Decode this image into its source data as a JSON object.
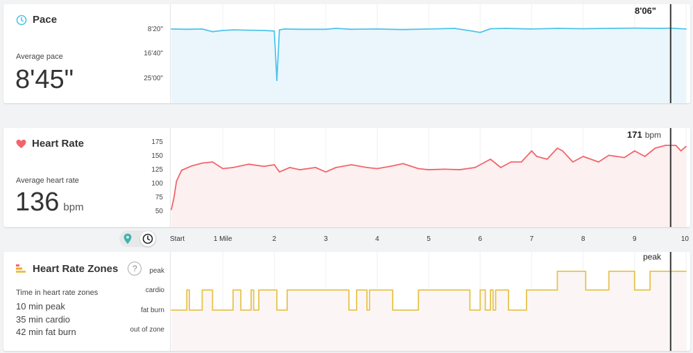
{
  "colors": {
    "pace": "#4ec4ea",
    "pace_fill": "#eaf6fc",
    "hr": "#f2646b",
    "hr_fill": "#fdf0f0",
    "zones": "#e6c34d",
    "zones_fill": "#fbf6f5",
    "marker": "#333333"
  },
  "pace": {
    "title": "Pace",
    "icon": "clock-icon",
    "avg_label": "Average pace",
    "avg_value": "8'45\"",
    "marker_value": "8'06\"",
    "yticks": [
      "8'20\"",
      "16'40\"",
      "25'00\""
    ]
  },
  "heart_rate": {
    "title": "Heart Rate",
    "icon": "heart-icon",
    "avg_label": "Average heart rate",
    "avg_value": "136",
    "avg_unit": "bpm",
    "marker_value": "171",
    "marker_unit": "bpm",
    "yticks": [
      "175",
      "150",
      "125",
      "100",
      "75",
      "50"
    ]
  },
  "axis": {
    "ticks": [
      "Start",
      "1 Mile",
      "2",
      "3",
      "4",
      "5",
      "6",
      "7",
      "8",
      "9",
      "10"
    ]
  },
  "toggle": {
    "location_icon": "location-pin-icon",
    "time_icon": "clock-icon"
  },
  "zones": {
    "title": "Heart Rate Zones",
    "help": "?",
    "time_label": "Time in heart rate zones",
    "summary": [
      "10 min peak",
      "35 min cardio",
      "42 min fat burn"
    ],
    "marker_value": "peak",
    "levels": [
      "peak",
      "cardio",
      "fat burn",
      "out of zone"
    ]
  },
  "chart_data": [
    {
      "type": "line",
      "name": "Pace",
      "x_unit": "miles",
      "y_unit": "min per mile",
      "ylim": [
        0,
        26
      ],
      "x": [
        0,
        0.3,
        0.6,
        0.8,
        1.0,
        1.2,
        1.5,
        1.8,
        2.0,
        2.05,
        2.1,
        2.2,
        2.5,
        3.0,
        3.2,
        3.5,
        4.0,
        4.5,
        5.0,
        5.5,
        5.8,
        6.0,
        6.2,
        6.5,
        7.0,
        7.5,
        8.0,
        8.5,
        9.0,
        9.5,
        9.7,
        10.0
      ],
      "y": [
        8.3,
        8.4,
        8.3,
        9.2,
        8.8,
        8.6,
        8.7,
        8.8,
        9.0,
        26.0,
        8.6,
        8.3,
        8.4,
        8.4,
        8.1,
        8.4,
        8.3,
        8.5,
        8.3,
        8.1,
        8.9,
        9.5,
        8.2,
        8.1,
        8.3,
        8.1,
        8.2,
        8.1,
        8.0,
        8.1,
        8.0,
        8.3
      ],
      "marker": {
        "x": 9.7,
        "label": "8'06\""
      }
    },
    {
      "type": "line",
      "name": "Heart Rate",
      "y_unit": "bpm",
      "ylim": [
        50,
        175
      ],
      "x": [
        0,
        0.05,
        0.1,
        0.2,
        0.4,
        0.6,
        0.8,
        1.0,
        1.2,
        1.5,
        1.8,
        2.0,
        2.1,
        2.3,
        2.5,
        2.8,
        3.0,
        3.2,
        3.5,
        3.8,
        4.0,
        4.3,
        4.5,
        4.8,
        5.0,
        5.3,
        5.6,
        5.9,
        6.0,
        6.2,
        6.4,
        6.6,
        6.8,
        7.0,
        7.1,
        7.3,
        7.5,
        7.6,
        7.8,
        8.0,
        8.3,
        8.5,
        8.8,
        9.0,
        9.2,
        9.4,
        9.6,
        9.8,
        9.9,
        10.0
      ],
      "y": [
        54,
        75,
        105,
        125,
        133,
        138,
        140,
        128,
        130,
        136,
        132,
        135,
        122,
        130,
        126,
        130,
        122,
        130,
        135,
        130,
        128,
        133,
        137,
        128,
        126,
        127,
        126,
        130,
        135,
        145,
        130,
        140,
        140,
        160,
        150,
        145,
        165,
        160,
        140,
        150,
        140,
        152,
        148,
        160,
        150,
        165,
        170,
        170,
        160,
        168
      ],
      "marker": {
        "x": 9.7,
        "label": "171 bpm"
      }
    },
    {
      "type": "line",
      "name": "Heart Rate Zones",
      "y_categories": [
        "out of zone",
        "fat burn",
        "cardio",
        "peak"
      ],
      "x": [
        0,
        0.1,
        0.3,
        0.35,
        0.6,
        0.8,
        1.2,
        1.35,
        1.55,
        1.6,
        1.7,
        2.05,
        2.25,
        3.45,
        3.6,
        3.8,
        3.85,
        4.3,
        4.8,
        5.8,
        6.0,
        6.1,
        6.2,
        6.25,
        6.3,
        6.55,
        6.9,
        7.5,
        8.05,
        8.5,
        9.0,
        9.3,
        9.5,
        10.0
      ],
      "y": [
        1,
        1,
        2,
        1,
        2,
        1,
        2,
        1,
        2,
        1,
        2,
        1,
        2,
        1,
        2,
        1,
        2,
        1,
        2,
        1,
        2,
        1,
        2,
        1,
        2,
        1,
        2,
        3,
        2,
        3,
        2,
        3,
        3,
        3
      ],
      "marker": {
        "x": 9.7,
        "label": "peak"
      }
    }
  ]
}
